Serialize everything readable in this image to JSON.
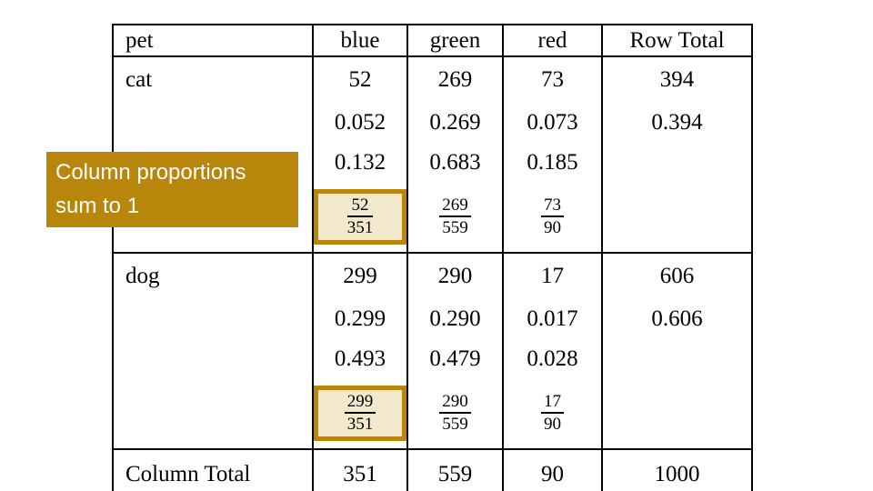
{
  "callout": {
    "lines": [
      "Column proportions",
      "sum to 1"
    ],
    "bg_color": "#B8860B",
    "text_color": "#FFFFFF"
  },
  "colors": {
    "highlight_border": "#B8860B",
    "highlight_fill": "#F2E8CB",
    "table_border": "#000000",
    "background": "#FFFFFF",
    "text": "#000000"
  },
  "table": {
    "columns": [
      "pet",
      "blue",
      "green",
      "red",
      "Row Total"
    ],
    "sections": [
      {
        "label": "cat",
        "counts": [
          "52",
          "269",
          "73"
        ],
        "row_total": "394",
        "joint_proportions": [
          "0.052",
          "0.269",
          "0.073"
        ],
        "row_total_proportion": "0.394",
        "column_proportions": [
          "0.132",
          "0.683",
          "0.185"
        ],
        "fractions": [
          {
            "numerator": "52",
            "denominator": "351",
            "highlighted": true
          },
          {
            "numerator": "269",
            "denominator": "559",
            "highlighted": false
          },
          {
            "numerator": "73",
            "denominator": "90",
            "highlighted": false
          }
        ]
      },
      {
        "label": "dog",
        "counts": [
          "299",
          "290",
          "17"
        ],
        "row_total": "606",
        "joint_proportions": [
          "0.299",
          "0.290",
          "0.017"
        ],
        "row_total_proportion": "0.606",
        "column_proportions": [
          "0.493",
          "0.479",
          "0.028"
        ],
        "fractions": [
          {
            "numerator": "299",
            "denominator": "351",
            "highlighted": true
          },
          {
            "numerator": "290",
            "denominator": "559",
            "highlighted": false
          },
          {
            "numerator": "17",
            "denominator": "90",
            "highlighted": false
          }
        ]
      }
    ],
    "footer": {
      "label": "Column Total",
      "values": [
        "351",
        "559",
        "90"
      ],
      "grand_total": "1000"
    }
  }
}
